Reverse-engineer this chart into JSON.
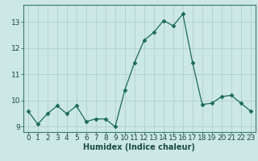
{
  "x": [
    0,
    1,
    2,
    3,
    4,
    5,
    6,
    7,
    8,
    9,
    10,
    11,
    12,
    13,
    14,
    15,
    16,
    17,
    18,
    19,
    20,
    21,
    22,
    23
  ],
  "y": [
    9.6,
    9.1,
    9.5,
    9.8,
    9.5,
    9.8,
    9.2,
    9.3,
    9.3,
    9.0,
    10.4,
    11.45,
    12.3,
    12.6,
    13.05,
    12.85,
    13.3,
    11.45,
    9.85,
    9.9,
    10.15,
    10.2,
    9.9,
    9.6
  ],
  "line_color": "#1a6b5a",
  "marker": "D",
  "marker_size": 2.5,
  "background_color": "#cce8e4",
  "grid_color": "#b0d0cc",
  "xlabel": "Humidex (Indice chaleur)",
  "xlim": [
    -0.5,
    23.5
  ],
  "ylim": [
    8.8,
    13.65
  ],
  "yticks": [
    9,
    10,
    11,
    12,
    13
  ],
  "xticks": [
    0,
    1,
    2,
    3,
    4,
    5,
    6,
    7,
    8,
    9,
    10,
    11,
    12,
    13,
    14,
    15,
    16,
    17,
    18,
    19,
    20,
    21,
    22,
    23
  ],
  "label_fontsize": 7,
  "tick_fontsize": 6.5,
  "tick_color": "#1a4a40",
  "spine_color": "#3a7a6a"
}
